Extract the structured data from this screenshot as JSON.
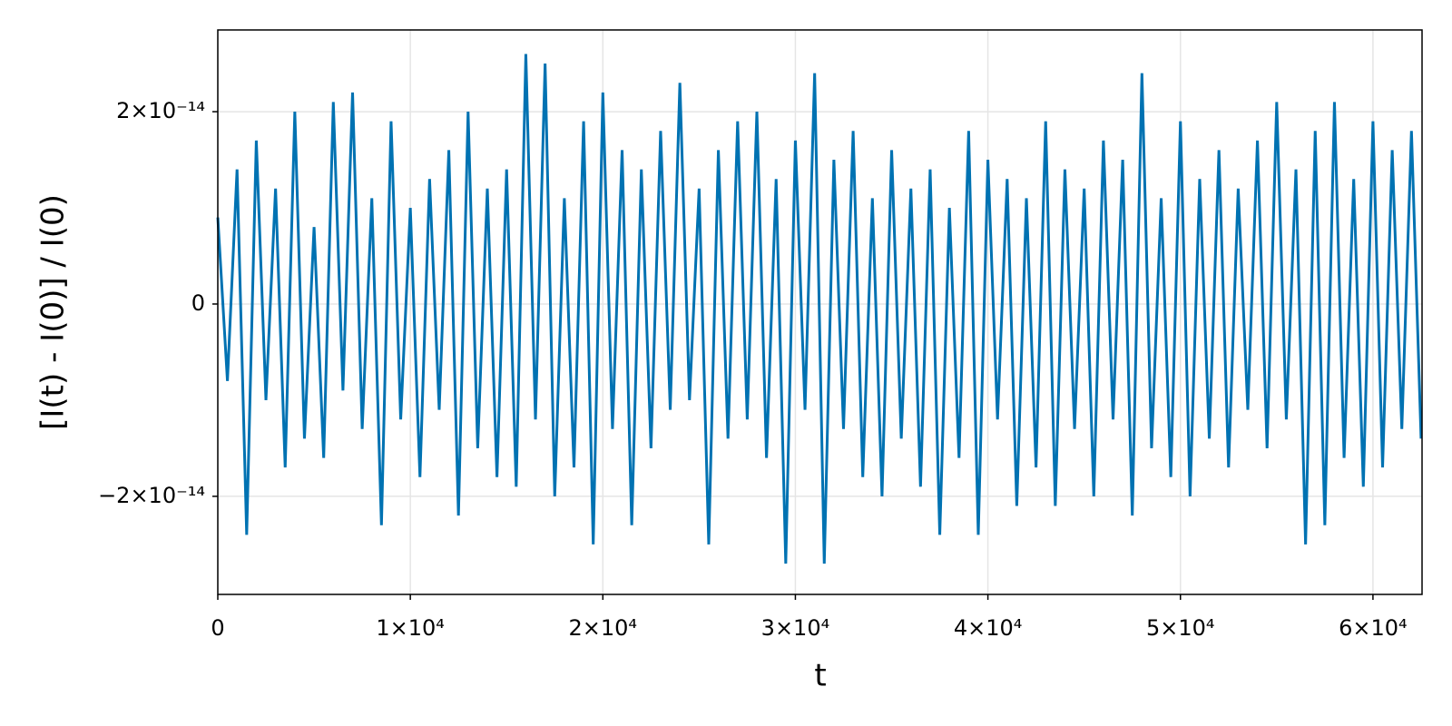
{
  "chart_data": {
    "type": "line",
    "xlabel": "t",
    "ylabel": "[I(t) - I(0)] / I(0)",
    "color": "#0072b2",
    "grid": true,
    "xlim": [
      0,
      62550
    ],
    "ylim": [
      -3.02e-14,
      2.85e-14
    ],
    "xticks": [
      0,
      {
        "value": 10000,
        "label": "1×10⁴"
      },
      {
        "value": 20000,
        "label": "2×10⁴"
      },
      {
        "value": 30000,
        "label": "3×10⁴"
      },
      {
        "value": 40000,
        "label": "4×10⁴"
      },
      {
        "value": 50000,
        "label": "5×10⁴"
      },
      {
        "value": 60000,
        "label": "6×10⁴"
      }
    ],
    "yticks": [
      {
        "value": -2e-14,
        "label": "−2×10⁻¹⁴"
      },
      0,
      {
        "value": 2e-14,
        "label": "2×10⁻¹⁴"
      }
    ],
    "x": [
      0,
      500,
      1000,
      1500,
      2000,
      2500,
      3000,
      3500,
      4000,
      4500,
      5000,
      5500,
      6000,
      6500,
      7000,
      7500,
      8000,
      8500,
      9000,
      9500,
      10000,
      10500,
      11000,
      11500,
      12000,
      12500,
      13000,
      13500,
      14000,
      14500,
      15000,
      15500,
      16000,
      16500,
      17000,
      17500,
      18000,
      18500,
      19000,
      19500,
      20000,
      20500,
      21000,
      21500,
      22000,
      22500,
      23000,
      23500,
      24000,
      24500,
      25000,
      25500,
      26000,
      26500,
      27000,
      27500,
      28000,
      28500,
      29000,
      29500,
      30000,
      30500,
      31000,
      31500,
      32000,
      32500,
      33000,
      33500,
      34000,
      34500,
      35000,
      35500,
      36000,
      36500,
      37000,
      37500,
      38000,
      38500,
      39000,
      39500,
      40000,
      40500,
      41000,
      41500,
      42000,
      42500,
      43000,
      43500,
      44000,
      44500,
      45000,
      45500,
      46000,
      46500,
      47000,
      47500,
      48000,
      48500,
      49000,
      49500,
      50000,
      50500,
      51000,
      51500,
      52000,
      52500,
      53000,
      53500,
      54000,
      54500,
      55000,
      55500,
      56000,
      56500,
      57000,
      57500,
      58000,
      58500,
      59000,
      59500,
      60000,
      60500,
      61000,
      61500,
      62000,
      62500
    ],
    "values": [
      9e-15,
      -8e-15,
      1.4e-14,
      -2.4e-14,
      1.7e-14,
      -1e-14,
      1.2e-14,
      -1.7e-14,
      2e-14,
      -1.4e-14,
      8e-15,
      -1.6e-14,
      2.1e-14,
      -9e-15,
      2.2e-14,
      -1.3e-14,
      1.1e-14,
      -2.3e-14,
      1.9e-14,
      -1.2e-14,
      1e-14,
      -1.8e-14,
      1.3e-14,
      -1.1e-14,
      1.6e-14,
      -2.2e-14,
      2e-14,
      -1.5e-14,
      1.2e-14,
      -1.8e-14,
      1.4e-14,
      -1.9e-14,
      2.6e-14,
      -1.2e-14,
      2.5e-14,
      -2e-14,
      1.1e-14,
      -1.7e-14,
      1.9e-14,
      -2.5e-14,
      2.2e-14,
      -1.3e-14,
      1.6e-14,
      -2.3e-14,
      1.4e-14,
      -1.5e-14,
      1.8e-14,
      -1.1e-14,
      2.3e-14,
      -1e-14,
      1.2e-14,
      -2.5e-14,
      1.6e-14,
      -1.4e-14,
      1.9e-14,
      -1.2e-14,
      2e-14,
      -1.6e-14,
      1.3e-14,
      -2.7e-14,
      1.7e-14,
      -1.1e-14,
      2.4e-14,
      -2.7e-14,
      1.5e-14,
      -1.3e-14,
      1.8e-14,
      -1.8e-14,
      1.1e-14,
      -2e-14,
      1.6e-14,
      -1.4e-14,
      1.2e-14,
      -1.9e-14,
      1.4e-14,
      -2.4e-14,
      1e-14,
      -1.6e-14,
      1.8e-14,
      -2.4e-14,
      1.5e-14,
      -1.2e-14,
      1.3e-14,
      -2.1e-14,
      1.1e-14,
      -1.7e-14,
      1.9e-14,
      -2.1e-14,
      1.4e-14,
      -1.3e-14,
      1.2e-14,
      -2e-14,
      1.7e-14,
      -1.2e-14,
      1.5e-14,
      -2.2e-14,
      2.4e-14,
      -1.5e-14,
      1.1e-14,
      -1.8e-14,
      1.9e-14,
      -2e-14,
      1.3e-14,
      -1.4e-14,
      1.6e-14,
      -1.7e-14,
      1.2e-14,
      -1.1e-14,
      1.7e-14,
      -1.5e-14,
      2.1e-14,
      -1.2e-14,
      1.4e-14,
      -2.5e-14,
      1.8e-14,
      -2.3e-14,
      2.1e-14,
      -1.6e-14,
      1.3e-14,
      -1.9e-14,
      1.9e-14,
      -1.7e-14,
      1.6e-14,
      -1.3e-14,
      1.8e-14,
      -1.4e-14
    ]
  }
}
